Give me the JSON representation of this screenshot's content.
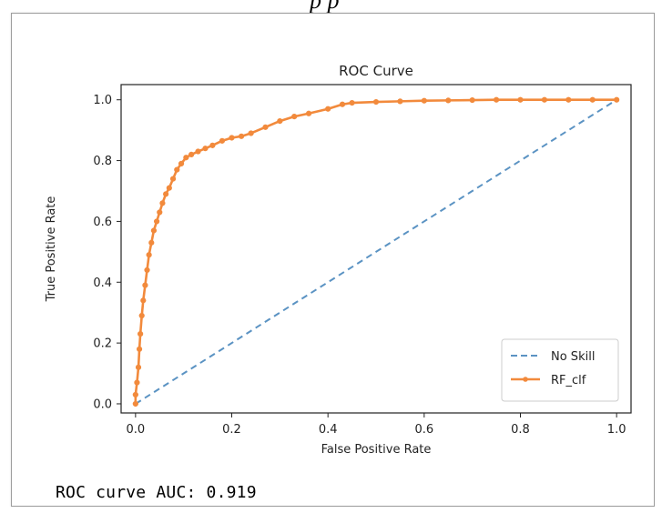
{
  "top_text": "p p",
  "chart_data": {
    "type": "line",
    "title": "ROC Curve",
    "xlabel": "False Positive Rate",
    "ylabel": "True Positive Rate",
    "xlim": [
      -0.03,
      1.03
    ],
    "ylim": [
      -0.03,
      1.05
    ],
    "xticks": [
      "0.0",
      "0.2",
      "0.4",
      "0.6",
      "0.8",
      "1.0"
    ],
    "yticks": [
      "0.0",
      "0.2",
      "0.4",
      "0.6",
      "0.8",
      "1.0"
    ],
    "grid": false,
    "legend_position": "bottom-right",
    "series": [
      {
        "name": "No Skill",
        "style": "dashed",
        "color": "#5b93c3",
        "x": [
          0.0,
          1.0
        ],
        "y": [
          0.0,
          1.0
        ]
      },
      {
        "name": "RF_clf",
        "style": "solid-markers",
        "color": "#f28a3c",
        "x": [
          0.0,
          0.0,
          0.003,
          0.006,
          0.008,
          0.01,
          0.013,
          0.016,
          0.02,
          0.024,
          0.028,
          0.033,
          0.038,
          0.044,
          0.05,
          0.056,
          0.063,
          0.07,
          0.078,
          0.086,
          0.095,
          0.105,
          0.116,
          0.13,
          0.145,
          0.16,
          0.18,
          0.2,
          0.22,
          0.24,
          0.27,
          0.3,
          0.33,
          0.36,
          0.4,
          0.43,
          0.45,
          0.5,
          0.55,
          0.6,
          0.65,
          0.7,
          0.75,
          0.8,
          0.85,
          0.9,
          0.95,
          1.0
        ],
        "y": [
          0.0,
          0.03,
          0.07,
          0.12,
          0.18,
          0.23,
          0.29,
          0.34,
          0.39,
          0.44,
          0.49,
          0.53,
          0.57,
          0.6,
          0.63,
          0.66,
          0.69,
          0.71,
          0.74,
          0.77,
          0.79,
          0.81,
          0.82,
          0.83,
          0.84,
          0.85,
          0.865,
          0.875,
          0.88,
          0.89,
          0.91,
          0.93,
          0.945,
          0.955,
          0.97,
          0.985,
          0.99,
          0.993,
          0.995,
          0.997,
          0.998,
          0.999,
          1.0,
          1.0,
          1.0,
          1.0,
          1.0,
          1.0
        ]
      }
    ]
  },
  "metric_text": "ROC curve AUC: 0.919"
}
